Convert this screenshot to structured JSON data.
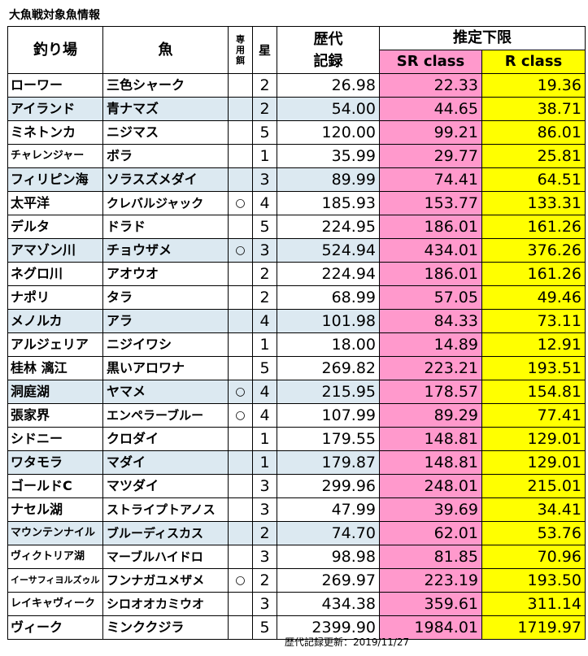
{
  "title": "大魚戦対象魚情報",
  "headers": {
    "place": "釣り場",
    "fish": "魚",
    "bait_lines": [
      "専",
      "用",
      "餌"
    ],
    "star": "星",
    "record_lines": [
      "歴代",
      "記録"
    ],
    "estimate": "推定下限",
    "sr_class": "SR class",
    "r_class": "R class"
  },
  "colors": {
    "sr": "#ff99cc",
    "r": "#ffff00",
    "alt_row": "#dce9f1"
  },
  "rows": [
    {
      "place": "ローワー",
      "fish": "三色シャーク",
      "bait": "",
      "star": "2",
      "record": "26.98",
      "sr": "22.33",
      "r": "19.36"
    },
    {
      "place": "アイランド",
      "fish": "青ナマズ",
      "bait": "",
      "star": "2",
      "record": "54.00",
      "sr": "44.65",
      "r": "38.71"
    },
    {
      "place": "ミネトンカ",
      "fish": "ニジマス",
      "bait": "",
      "star": "5",
      "record": "120.00",
      "sr": "99.21",
      "r": "86.01"
    },
    {
      "place": "チャレンジャー",
      "fish": "ボラ",
      "bait": "",
      "star": "1",
      "record": "35.99",
      "sr": "29.77",
      "r": "25.81"
    },
    {
      "place": "フィリピン海",
      "fish": "ソラスズメダイ",
      "bait": "",
      "star": "3",
      "record": "89.99",
      "sr": "74.41",
      "r": "64.51"
    },
    {
      "place": "太平洋",
      "fish": "クレバルジャック",
      "bait": "○",
      "star": "4",
      "record": "185.93",
      "sr": "153.77",
      "r": "133.31"
    },
    {
      "place": "デルタ",
      "fish": "ドラド",
      "bait": "",
      "star": "5",
      "record": "224.95",
      "sr": "186.01",
      "r": "161.26"
    },
    {
      "place": "アマゾン川",
      "fish": "チョウザメ",
      "bait": "○",
      "star": "3",
      "record": "524.94",
      "sr": "434.01",
      "r": "376.26"
    },
    {
      "place": "ネグロ川",
      "fish": "アオウオ",
      "bait": "",
      "star": "2",
      "record": "224.94",
      "sr": "186.01",
      "r": "161.26"
    },
    {
      "place": "ナポリ",
      "fish": "タラ",
      "bait": "",
      "star": "2",
      "record": "68.99",
      "sr": "57.05",
      "r": "49.46"
    },
    {
      "place": "メノルカ",
      "fish": "アラ",
      "bait": "",
      "star": "4",
      "record": "101.98",
      "sr": "84.33",
      "r": "73.11"
    },
    {
      "place": "アルジェリア",
      "fish": "ニジイワシ",
      "bait": "",
      "star": "1",
      "record": "18.00",
      "sr": "14.89",
      "r": "12.91"
    },
    {
      "place": "桂林 漓江",
      "fish": "黒いアロワナ",
      "bait": "",
      "star": "5",
      "record": "269.82",
      "sr": "223.21",
      "r": "193.51"
    },
    {
      "place": "洞庭湖",
      "fish": "ヤマメ",
      "bait": "○",
      "star": "4",
      "record": "215.95",
      "sr": "178.57",
      "r": "154.81"
    },
    {
      "place": "張家界",
      "fish": "エンペラーブルー",
      "bait": "○",
      "star": "4",
      "record": "107.99",
      "sr": "89.29",
      "r": "77.41"
    },
    {
      "place": "シドニー",
      "fish": "クロダイ",
      "bait": "",
      "star": "1",
      "record": "179.55",
      "sr": "148.81",
      "r": "129.01"
    },
    {
      "place": "ワタモラ",
      "fish": "マダイ",
      "bait": "",
      "star": "1",
      "record": "179.87",
      "sr": "148.81",
      "r": "129.01"
    },
    {
      "place": "ゴールドC",
      "fish": "マツダイ",
      "bait": "",
      "star": "3",
      "record": "299.96",
      "sr": "248.01",
      "r": "215.01"
    },
    {
      "place": "ナセル湖",
      "fish": "ストライプトアノス",
      "bait": "",
      "star": "3",
      "record": "47.99",
      "sr": "39.69",
      "r": "34.41"
    },
    {
      "place": "マウンテンナイル",
      "fish": "ブルーディスカス",
      "bait": "",
      "star": "2",
      "record": "74.70",
      "sr": "62.01",
      "r": "53.76"
    },
    {
      "place": "ヴィクトリア湖",
      "fish": "マーブルハイドロ",
      "bait": "",
      "star": "3",
      "record": "98.98",
      "sr": "81.85",
      "r": "70.96"
    },
    {
      "place": "イーサフィヨルズゥル",
      "fish": "フンナガユメザメ",
      "bait": "○",
      "star": "2",
      "record": "269.97",
      "sr": "223.19",
      "r": "193.50"
    },
    {
      "place": "レイキャヴィーク",
      "fish": "シロオオカミウオ",
      "bait": "",
      "star": "3",
      "record": "434.38",
      "sr": "359.61",
      "r": "311.14"
    },
    {
      "place": "ヴィーク",
      "fish": "ミンククジラ",
      "bait": "",
      "star": "5",
      "record": "2399.90",
      "sr": "1984.01",
      "r": "1719.97"
    }
  ],
  "footer": "歴代記録更新：2019/11/27"
}
